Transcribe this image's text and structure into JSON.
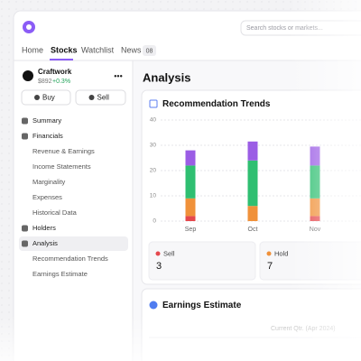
{
  "nav": {
    "search_placeholder": "Search stocks or markets...",
    "tabs": [
      "Home",
      "Stocks",
      "Watchlist",
      "News"
    ],
    "news_badge": "08"
  },
  "sidebar": {
    "company": "Craftwork",
    "price": "$892",
    "change": "+0.3%",
    "buttons": [
      "Buy",
      "Sell"
    ],
    "menu": [
      {
        "label": "Summary"
      },
      {
        "label": "Financials",
        "items": [
          "Revenue & Earnings",
          "Income Statements",
          "Marginality",
          "Expenses",
          "Historical Data"
        ]
      },
      {
        "label": "Holders"
      },
      {
        "label": "Analysis",
        "items": [
          "Recommendation Trends",
          "Earnings Estimate"
        ]
      }
    ]
  },
  "heading": "Analysis",
  "chart_data": {
    "type": "bar",
    "stacked": true,
    "title": "Recommendation Trends",
    "categories": [
      "Sep",
      "Oct",
      "Nov"
    ],
    "series": [
      {
        "color": "#e5484d",
        "values": [
          2,
          0,
          2
        ]
      },
      {
        "color": "#f0913a",
        "values": [
          7,
          6,
          7
        ]
      },
      {
        "color": "#2fbf71",
        "values": [
          13,
          18,
          13
        ]
      },
      {
        "color": "#9b5de5",
        "values": [
          6,
          7.5,
          7.5
        ]
      }
    ],
    "ylim": [
      0,
      40
    ],
    "yticks": [
      0,
      10,
      20,
      30,
      40
    ],
    "grid": true
  },
  "summary": [
    {
      "label": "Sell",
      "value": 3,
      "color": "#e5484d"
    },
    {
      "label": "Hold",
      "value": 7,
      "color": "#f0913a"
    }
  ],
  "earnings": {
    "title": "Earnings Estimate",
    "period": "Current Qtr. (Apr 2024)"
  }
}
